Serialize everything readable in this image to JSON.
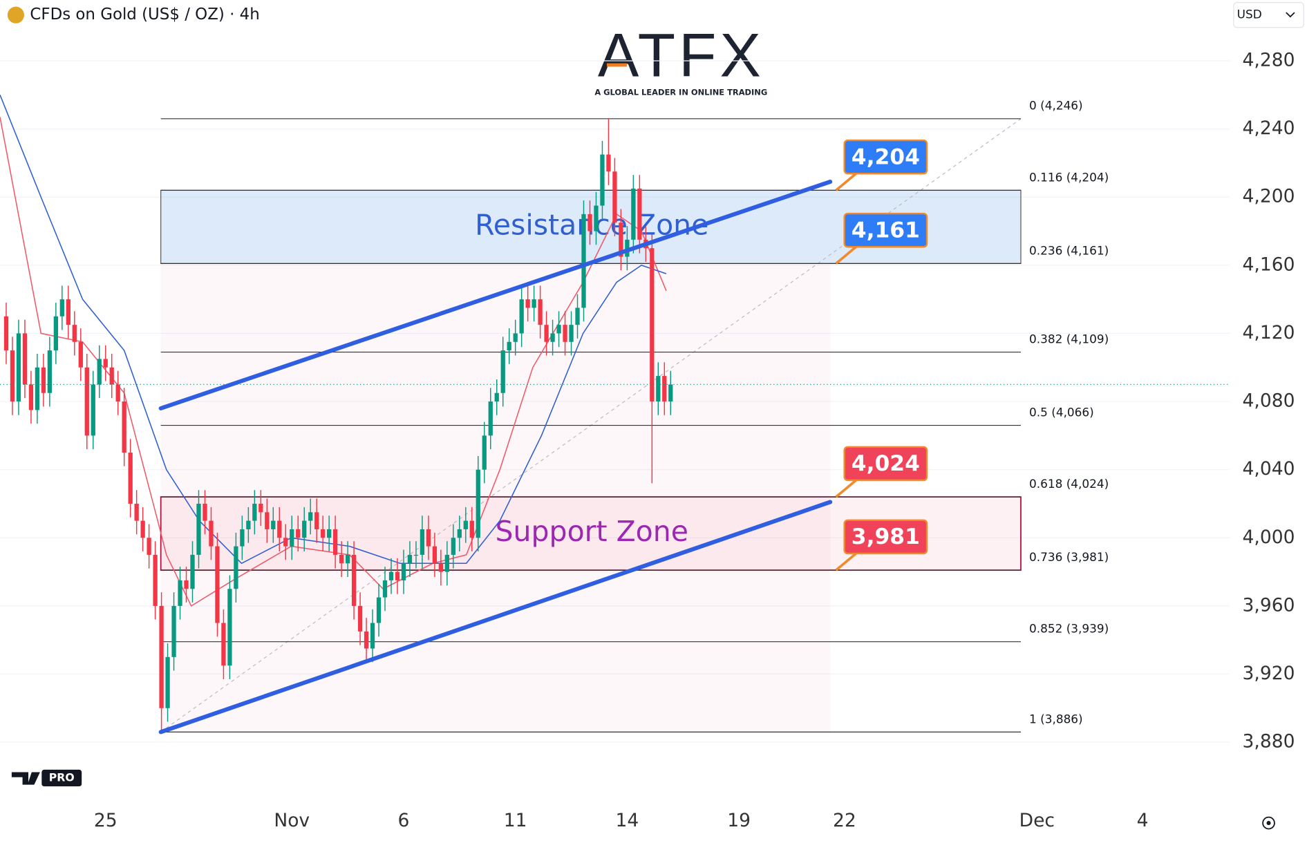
{
  "chart_data": {
    "type": "candlestick",
    "title": "CFDs on Gold (US$ / OZ) · 4h",
    "currency": "USD",
    "logo_text": "ATFX",
    "logo_tagline": "A GLOBAL LEADER IN ONLINE TRADING",
    "badge": "PRO",
    "up_color": "#089981",
    "down_color": "#f23645",
    "grid": true,
    "xlim": [
      -1,
      197
    ],
    "xticks": [
      {
        "value": 16,
        "label": "25"
      },
      {
        "value": 46,
        "label": "Nov"
      },
      {
        "value": 64,
        "label": "6"
      },
      {
        "value": 82,
        "label": "11"
      },
      {
        "value": 100,
        "label": "14"
      },
      {
        "value": 118,
        "label": "19"
      },
      {
        "value": 135,
        "label": "22"
      },
      {
        "value": 166,
        "label": "Dec"
      },
      {
        "value": 183,
        "label": "4"
      }
    ],
    "ylim": [
      3860,
      4300
    ],
    "yticks": [
      {
        "value": 3880,
        "label": "3,880"
      },
      {
        "value": 3920,
        "label": "3,920"
      },
      {
        "value": 3960,
        "label": "3,960"
      },
      {
        "value": 4000,
        "label": "4,000"
      },
      {
        "value": 4040,
        "label": "4,040"
      },
      {
        "value": 4080,
        "label": "4,080"
      },
      {
        "value": 4120,
        "label": "4,120"
      },
      {
        "value": 4160,
        "label": "4,160"
      },
      {
        "value": 4200,
        "label": "4,200"
      },
      {
        "value": 4240,
        "label": "4,240"
      },
      {
        "value": 4280,
        "label": "4,280"
      }
    ],
    "open": [
      4130,
      4110,
      4080,
      4120,
      4090,
      4075,
      4100,
      4085,
      4110,
      4130,
      4140,
      4125,
      4115,
      4100,
      4060,
      4090,
      4105,
      4100,
      4090,
      4080,
      4050,
      4020,
      4010,
      4000,
      3990,
      3960,
      3900,
      3930,
      3960,
      3975,
      3970,
      3990,
      4020,
      4010,
      3995,
      3950,
      3925,
      3970,
      3995,
      4005,
      4010,
      4020,
      4015,
      4005,
      4010,
      4000,
      3995,
      4005,
      4000,
      4010,
      4015,
      4005,
      4000,
      4005,
      3990,
      3985,
      3990,
      3960,
      3945,
      3935,
      3950,
      3965,
      3975,
      3980,
      3975,
      3985,
      3990,
      3990,
      4005,
      3995,
      3985,
      3980,
      3990,
      4000,
      4005,
      4010,
      4000,
      4040,
      4060,
      4080,
      4085,
      4110,
      4115,
      4120,
      4140,
      4135,
      4140,
      4125,
      4115,
      4120,
      4125,
      4115,
      4125,
      4135,
      4190,
      4180,
      4195,
      4225,
      4215,
      4185,
      4165,
      4175,
      4205,
      4175,
      4170,
      4080,
      4095,
      4080
    ],
    "high": [
      4138,
      4118,
      4128,
      4128,
      4098,
      4108,
      4108,
      4118,
      4138,
      4148,
      4148,
      4133,
      4123,
      4108,
      4098,
      4113,
      4113,
      4108,
      4098,
      4088,
      4058,
      4028,
      4018,
      4008,
      3998,
      3968,
      3938,
      3968,
      3983,
      3983,
      3998,
      4028,
      4028,
      4018,
      4003,
      3958,
      3978,
      4003,
      4013,
      4018,
      4028,
      4028,
      4023,
      4018,
      4018,
      4008,
      4013,
      4013,
      4018,
      4023,
      4023,
      4013,
      4013,
      4013,
      3998,
      3998,
      3998,
      3968,
      3953,
      3958,
      3973,
      3983,
      3988,
      3988,
      3993,
      3998,
      3998,
      4013,
      4013,
      4003,
      3993,
      3998,
      4008,
      4013,
      4018,
      4018,
      4048,
      4068,
      4088,
      4093,
      4118,
      4123,
      4128,
      4148,
      4148,
      4148,
      4148,
      4133,
      4128,
      4133,
      4133,
      4133,
      4143,
      4198,
      4198,
      4203,
      4233,
      4246,
      4223,
      4193,
      4183,
      4213,
      4213,
      4183,
      4178,
      4103,
      4103,
      4098
    ],
    "low": [
      4102,
      4072,
      4072,
      4082,
      4067,
      4067,
      4077,
      4077,
      4102,
      4122,
      4117,
      4107,
      4092,
      4052,
      4052,
      4082,
      4092,
      4082,
      4072,
      4042,
      4012,
      4002,
      3992,
      3982,
      3952,
      3886,
      3892,
      3922,
      3952,
      3962,
      3962,
      3982,
      4002,
      3987,
      3942,
      3917,
      3917,
      3962,
      3987,
      3997,
      4002,
      4007,
      3997,
      3997,
      3992,
      3987,
      3987,
      3992,
      3992,
      4002,
      3997,
      3992,
      3992,
      3982,
      3977,
      3977,
      3952,
      3937,
      3927,
      3927,
      3942,
      3957,
      3967,
      3967,
      3967,
      3977,
      3982,
      3982,
      3987,
      3977,
      3972,
      3972,
      3982,
      3992,
      3997,
      3992,
      3992,
      4032,
      4052,
      4072,
      4077,
      4102,
      4107,
      4112,
      4127,
      4127,
      4117,
      4107,
      4107,
      4112,
      4107,
      4107,
      4117,
      4127,
      4172,
      4172,
      4187,
      4207,
      4177,
      4157,
      4157,
      4167,
      4167,
      4162,
      4032,
      4072,
      4072,
      4072
    ],
    "close": [
      4110,
      4080,
      4120,
      4090,
      4075,
      4100,
      4085,
      4110,
      4130,
      4140,
      4125,
      4115,
      4100,
      4060,
      4090,
      4105,
      4100,
      4090,
      4080,
      4050,
      4020,
      4010,
      4000,
      3990,
      3960,
      3900,
      3930,
      3960,
      3975,
      3970,
      3990,
      4020,
      4010,
      3995,
      3950,
      3925,
      3970,
      3995,
      4005,
      4010,
      4020,
      4015,
      4005,
      4010,
      4000,
      3995,
      4005,
      4000,
      4010,
      4015,
      4005,
      4000,
      4005,
      3990,
      3985,
      3990,
      3960,
      3945,
      3935,
      3950,
      3965,
      3975,
      3980,
      3975,
      3985,
      3990,
      3990,
      4005,
      3995,
      3985,
      3980,
      3990,
      4000,
      4005,
      4010,
      4000,
      4040,
      4060,
      4080,
      4085,
      4110,
      4115,
      4120,
      4140,
      4135,
      4140,
      4125,
      4115,
      4120,
      4125,
      4115,
      4125,
      4135,
      4190,
      4180,
      4195,
      4225,
      4215,
      4185,
      4165,
      4175,
      4205,
      4175,
      4170,
      4080,
      4095,
      4080,
      4090
    ],
    "moving_averages": [
      {
        "color": "#f05a6a",
        "x": [
          -1,
          5.6,
          12.3,
          19,
          24.4,
          25.8,
          29.8,
          36.5,
          45.9,
          55.3,
          60.7,
          68.7,
          74.1,
          79.5,
          84.8,
          92.9,
          98.3,
          102.3,
          106.3
        ],
        "values": [
          4247,
          4120,
          4115,
          4085,
          4010,
          3990,
          3960,
          3975,
          3995,
          3990,
          3970,
          3985,
          3990,
          4040,
          4100,
          4150,
          4190,
          4180,
          4145
        ]
      },
      {
        "color": "#2f5fd0",
        "x": [
          -1,
          5.6,
          12.3,
          19,
          25.8,
          31.1,
          37.9,
          45.9,
          55.3,
          63.4,
          74.1,
          79.5,
          86.2,
          92.9,
          98.3,
          102.3,
          106.3
        ],
        "values": [
          4260,
          4200,
          4140,
          4110,
          4040,
          4010,
          3985,
          4000,
          3995,
          3985,
          3985,
          4010,
          4060,
          4120,
          4150,
          4160,
          4155
        ]
      }
    ],
    "fibonacci": {
      "x_range": [
        24.9,
        163.4
      ],
      "levels": [
        {
          "label": "0 (4,246)",
          "value": 4246
        },
        {
          "label": "0.116 (4,204)",
          "value": 4204
        },
        {
          "label": "0.236 (4,161)",
          "value": 4161
        },
        {
          "label": "0.382 (4,109)",
          "value": 4109
        },
        {
          "label": "0.5 (4,066)",
          "value": 4066
        },
        {
          "label": "0.618 (4,024)",
          "value": 4024
        },
        {
          "label": "0.736 (3,981)",
          "value": 3981
        },
        {
          "label": "0.852 (3,939)",
          "value": 3939
        },
        {
          "label": "1 (3,886)",
          "value": 3886
        }
      ]
    },
    "zones": [
      {
        "label": "Resistance Zone",
        "from": 4161,
        "to": 4204,
        "fill": "rgba(120,170,235,0.25)",
        "stroke": "#555",
        "text_color": "#2f5fd0"
      },
      {
        "label": "Support Zone",
        "from": 3981,
        "to": 4024,
        "fill": "rgba(240,120,150,0.10)",
        "stroke": "#b3123f",
        "text_color": "#9c27b0"
      }
    ],
    "trendlines": [
      {
        "color": "#2f5fe0",
        "x": [
          24.9,
          132.7
        ],
        "values": [
          4076,
          4209
        ]
      },
      {
        "color": "#2f5fe0",
        "x": [
          24.9,
          132.7
        ],
        "values": [
          3886,
          4021
        ]
      }
    ],
    "callouts": [
      {
        "value": 4204,
        "label": "4,204",
        "color": "#2e7cf6"
      },
      {
        "value": 4161,
        "label": "4,161",
        "color": "#2e7cf6"
      },
      {
        "value": 4024,
        "label": "4,024",
        "color": "#f0435a"
      },
      {
        "value": 3981,
        "label": "3,981",
        "color": "#f0435a"
      }
    ]
  }
}
